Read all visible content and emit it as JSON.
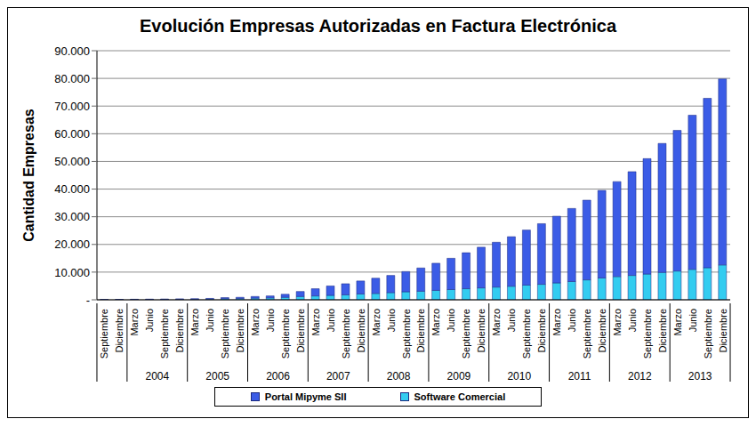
{
  "chart_data": {
    "type": "bar",
    "title": "Evolución Empresas Autorizadas en Factura Electrónica",
    "y_label": "Cantidad Empresas",
    "categories": [
      "Septiembre",
      "Diciembre",
      "Marzo",
      "Junio",
      "Septiembre",
      "Diciembre",
      "Marzo",
      "Junio",
      "Septiembre",
      "Diciembre",
      "Marzo",
      "Junio",
      "Septiembre",
      "Diciembre",
      "Marzo",
      "Junio",
      "Septiembre",
      "Diciembre",
      "Marzo",
      "Junio",
      "Septiembre",
      "Diciembre",
      "Marzo",
      "Junio",
      "Septiembre",
      "Diciembre",
      "Marzo",
      "Junio",
      "Septiembre",
      "Diciembre",
      "Marzo",
      "Junio",
      "Septiembre",
      "Diciembre",
      "Marzo",
      "Junio",
      "Septiembre",
      "Diciembre",
      "Marzo",
      "Junio",
      "Septiembre",
      "Diciembre"
    ],
    "category_years": [
      null,
      null,
      "2004",
      "2004",
      "2004",
      "2004",
      "2005",
      "2005",
      "2005",
      "2005",
      "2006",
      "2006",
      "2006",
      "2006",
      "2007",
      "2007",
      "2007",
      "2007",
      "2008",
      "2008",
      "2008",
      "2008",
      "2009",
      "2009",
      "2009",
      "2009",
      "2010",
      "2010",
      "2010",
      "2010",
      "2011",
      "2011",
      "2011",
      "2011",
      "2012",
      "2012",
      "2012",
      "2012",
      "2013",
      "2013",
      "2013",
      "2013"
    ],
    "series": [
      {
        "name": "Portal Mipyme SII",
        "color": "#3b5ce6",
        "values": [
          50,
          70,
          100,
          130,
          150,
          180,
          200,
          250,
          400,
          450,
          600,
          700,
          1100,
          1800,
          2600,
          3400,
          4000,
          4700,
          5500,
          6200,
          7300,
          8400,
          9800,
          11300,
          13000,
          14700,
          16200,
          17900,
          19900,
          21900,
          24100,
          26400,
          28800,
          31600,
          34300,
          37500,
          41700,
          46600,
          50800,
          55700,
          61200,
          67200
        ]
      },
      {
        "name": "Software Comercial",
        "color": "#33ccf0",
        "values": [
          50,
          80,
          100,
          120,
          150,
          170,
          200,
          250,
          400,
          450,
          600,
          700,
          900,
          1200,
          1400,
          1600,
          1800,
          2100,
          2300,
          2600,
          2900,
          3100,
          3400,
          3700,
          4000,
          4300,
          4600,
          4900,
          5300,
          5600,
          6100,
          6600,
          7200,
          7900,
          8400,
          8800,
          9300,
          9900,
          10400,
          11000,
          11600,
          12600
        ]
      }
    ],
    "ylim": [
      0,
      90000
    ],
    "yticks": [
      {
        "value": 0,
        "label": "-"
      },
      {
        "value": 10000,
        "label": "10.000"
      },
      {
        "value": 20000,
        "label": "20.000"
      },
      {
        "value": 30000,
        "label": "30.000"
      },
      {
        "value": 40000,
        "label": "40.000"
      },
      {
        "value": 50000,
        "label": "50.000"
      },
      {
        "value": 60000,
        "label": "60.000"
      },
      {
        "value": 70000,
        "label": "70.000"
      },
      {
        "value": 80000,
        "label": "80.000"
      },
      {
        "value": 90000,
        "label": "90.000"
      }
    ],
    "grid": true,
    "stacked": true,
    "legend": "bottom"
  }
}
